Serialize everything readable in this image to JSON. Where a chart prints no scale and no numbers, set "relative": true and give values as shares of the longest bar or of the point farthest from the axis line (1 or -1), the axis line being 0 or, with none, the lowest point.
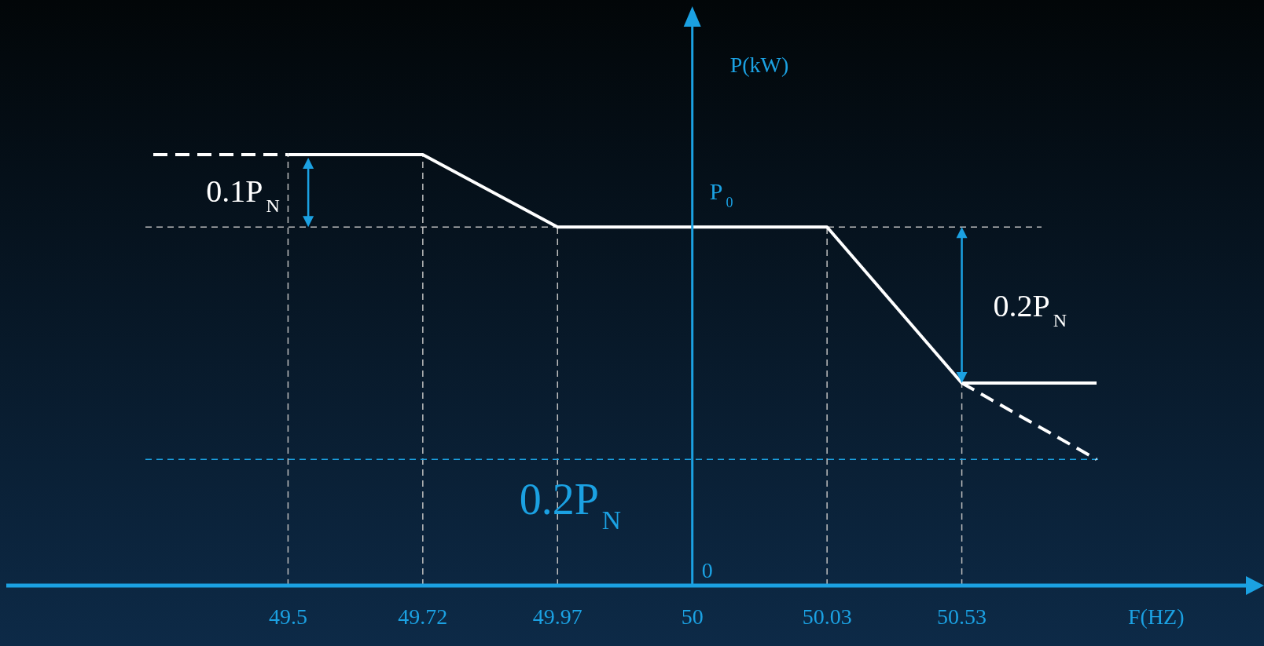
{
  "chart_data": {
    "type": "line",
    "xlabel": "F(HZ)",
    "ylabel": "P(kW)",
    "relative": true,
    "grid": "x",
    "marker": "none",
    "categories": [
      null,
      "49.5",
      "49.72",
      "49.97",
      "50",
      "50.03",
      "50.53",
      null
    ],
    "series": [
      {
        "color": "#ffffff",
        "line_style": "solid",
        "values": [
          null,
          1,
          1,
          0.832,
          0.832,
          0.832,
          0.47,
          0.47
        ]
      },
      {
        "color": "#ffffff",
        "line_style": "dashed",
        "values": [
          1,
          1,
          null,
          null,
          null,
          null,
          null,
          null
        ]
      },
      {
        "color": "#ffffff",
        "line_style": "dashed",
        "values": [
          null,
          null,
          null,
          null,
          null,
          null,
          0.47,
          0.293
        ]
      }
    ],
    "ref_lines": [
      {
        "axis": "y",
        "value": 0.832,
        "color": "#bfbfbf",
        "line_style": "dashed"
      },
      {
        "axis": "y",
        "value": 0.293,
        "color": "#1ba1e2",
        "line_style": "dashed"
      },
      {
        "axis": "x",
        "value": "50",
        "color": "#1ba1e2",
        "line_style": "solid"
      }
    ],
    "annotations": [
      "0.1P$_{N}$",
      "0.2P$_{N}$",
      "0.2P$_{N}$",
      "P$_{0}$",
      "0"
    ]
  }
}
